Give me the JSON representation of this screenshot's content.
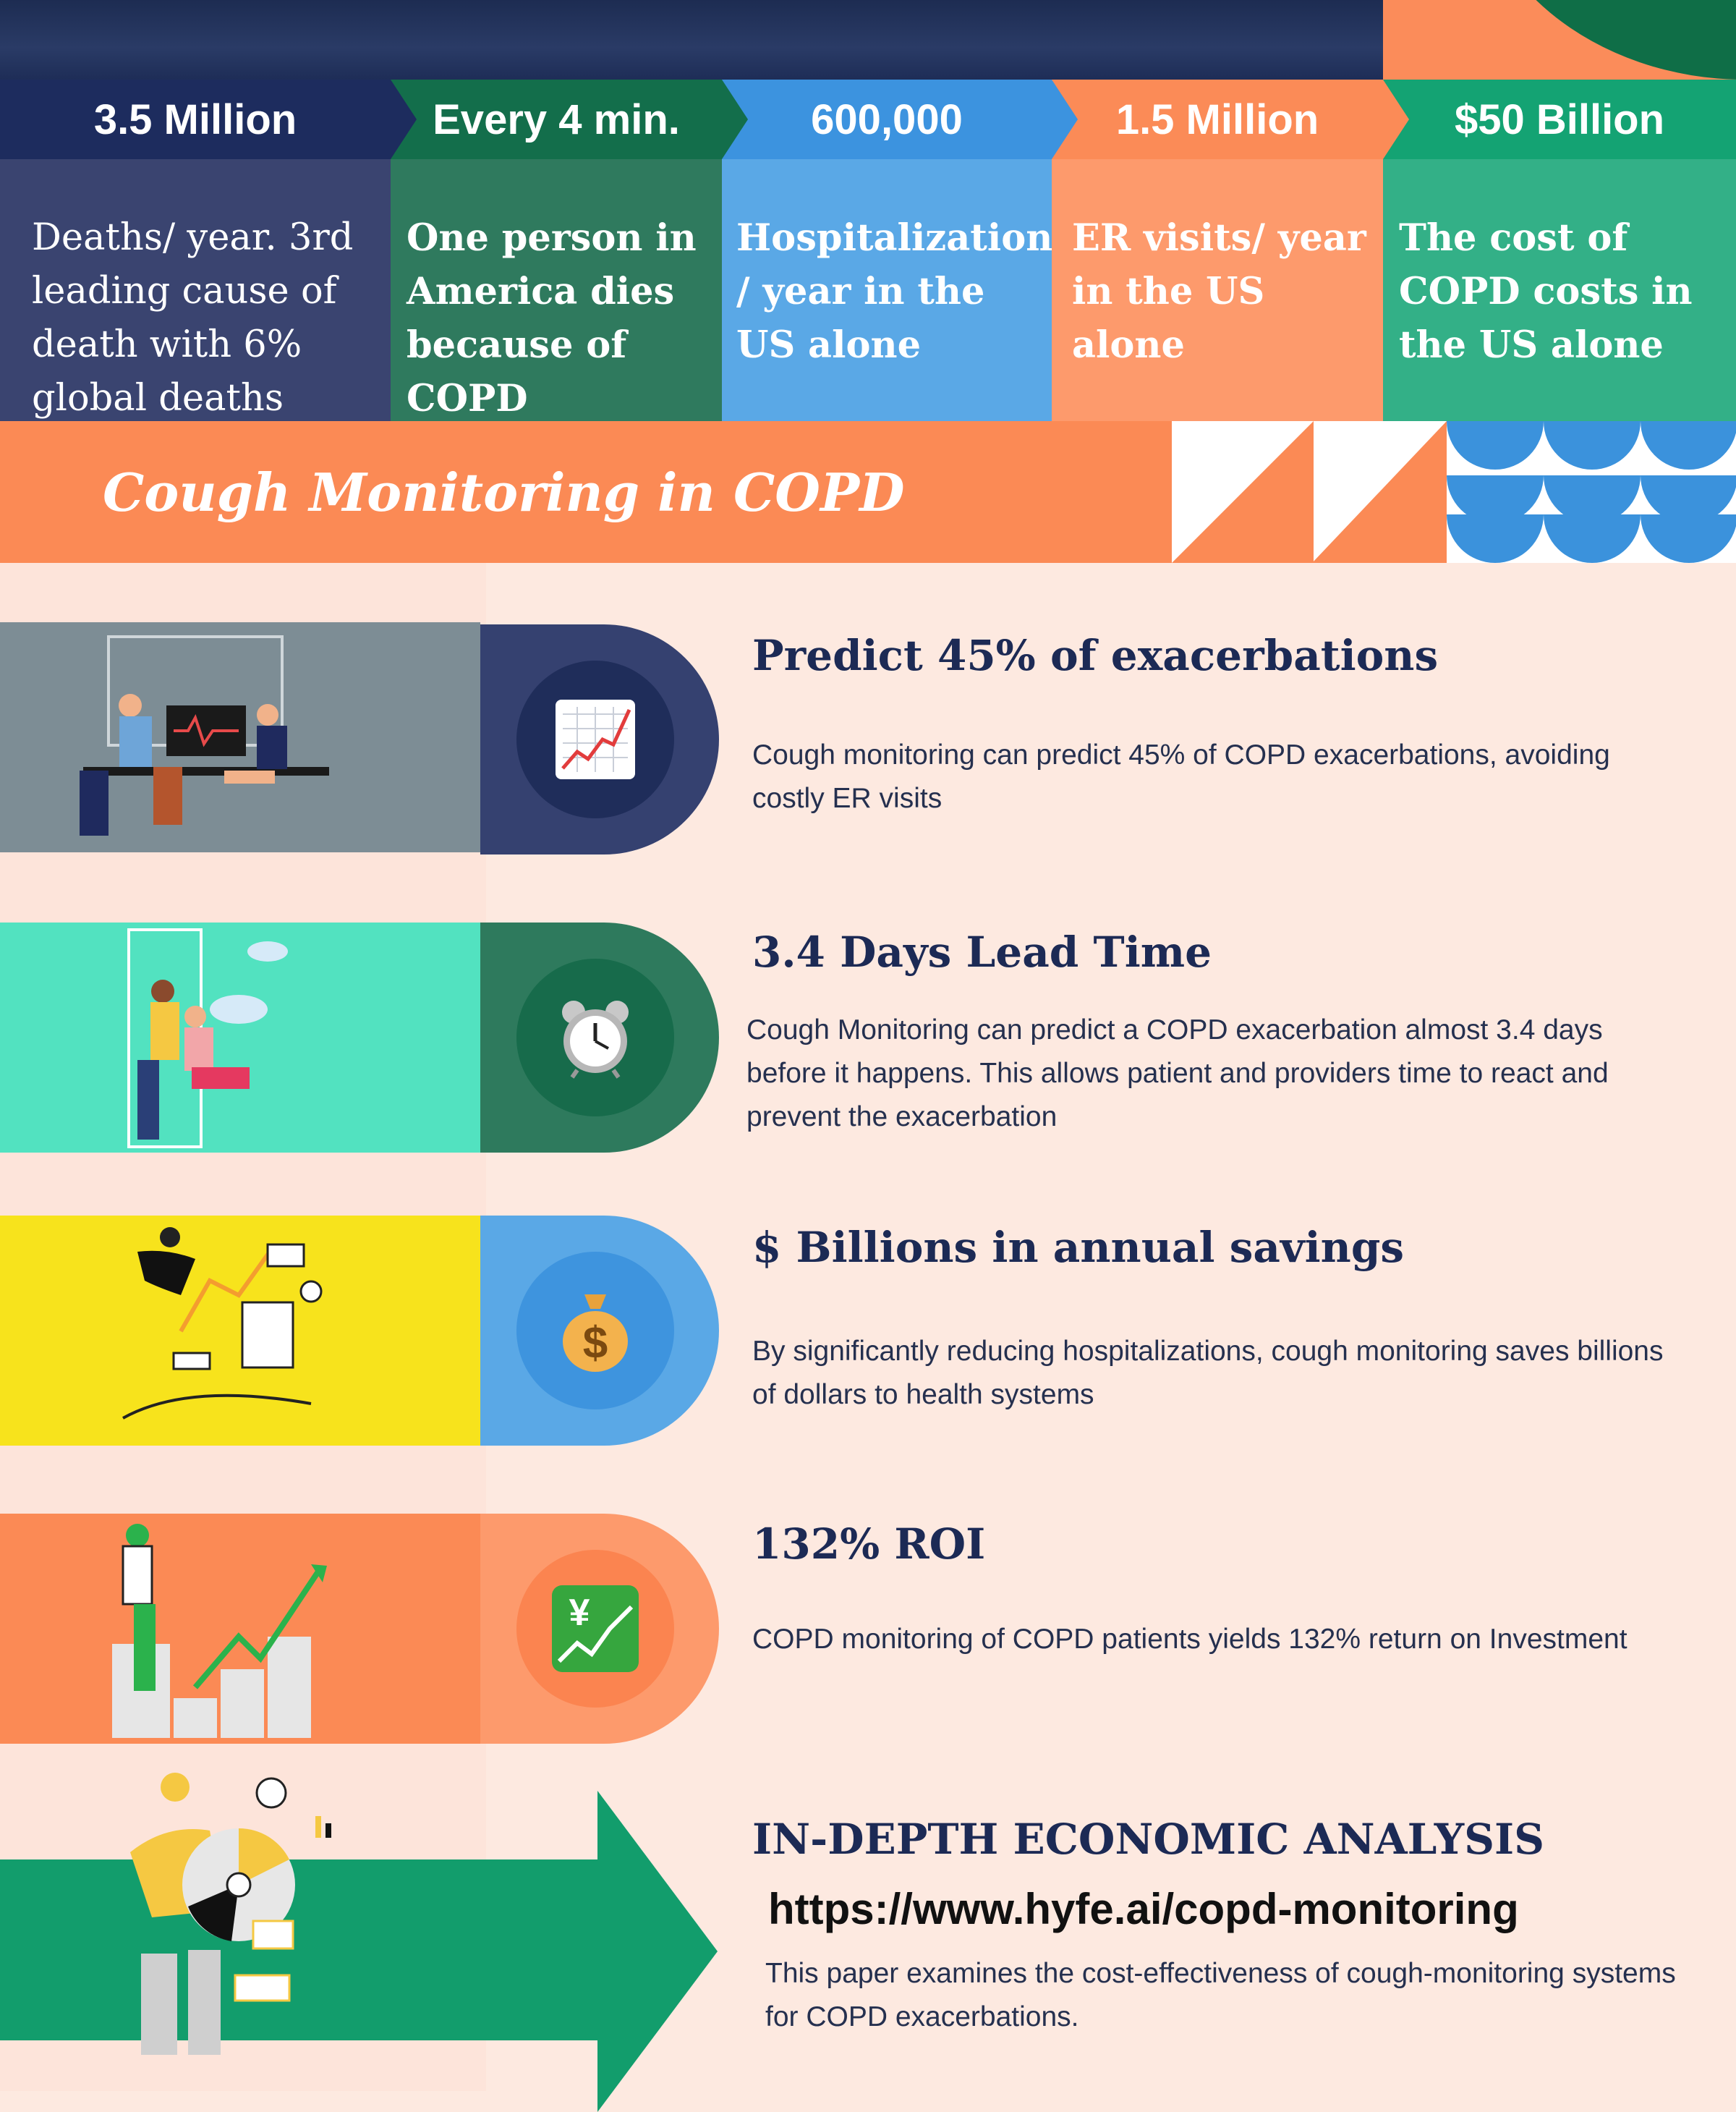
{
  "stats": [
    {
      "value": "3.5 Million",
      "text": "Deaths/ year. 3rd leading cause of death with 6% global deaths",
      "head_color": "#1d2c5e",
      "body_color": "#3a4470"
    },
    {
      "value": "Every 4 min.",
      "text": "One person in America dies because of COPD",
      "head_color": "#136e4b",
      "body_color": "#2f7a5e"
    },
    {
      "value": "600,000",
      "text": "Hospitalizations / year  in the US alone",
      "head_color": "#3c93df",
      "body_color": "#5aa8e6"
    },
    {
      "value": "1.5 Million",
      "text": "ER visits/ year in the US alone",
      "head_color": "#fb8b57",
      "body_color": "#fd9a6c"
    },
    {
      "value": "$50 Billion",
      "text": "The cost of COPD costs in the US alone",
      "head_color": "#14a373",
      "body_color": "#33b087"
    }
  ],
  "section_title": "Cough Monitoring in COPD",
  "features": [
    {
      "title": "Predict 45% of exacerbations",
      "body": "Cough monitoring can predict 45% of COPD exacerbations, avoiding costly ER visits",
      "icon": "chart-increasing-icon",
      "illus_color": "#7d8d95",
      "pill_color": "#354170",
      "circle_color": "#1f2d5a"
    },
    {
      "title": "3.4 Days Lead Time",
      "body": "Cough Monitoring can predict a COPD exacerbation almost 3.4 days before it happens. This allows patient and providers time to react and prevent the exacerbation",
      "icon": "alarm-clock-icon",
      "illus_color": "#52e2c0",
      "pill_color": "#2e7a5d",
      "circle_color": "#176b4b"
    },
    {
      "title": "$ Billions in annual savings",
      "body": "By significantly reducing hospitalizations, cough monitoring saves billions of dollars to  health systems",
      "icon": "money-bag-icon",
      "illus_color": "#f7e31c",
      "pill_color": "#5aa8e6",
      "circle_color": "#3e94de"
    },
    {
      "title": "132% ROI",
      "body": "COPD monitoring of COPD patients yields 132% return on Investment",
      "icon": "yen-chart-icon",
      "illus_color": "#fb8a55",
      "pill_color": "#fd9a6c",
      "circle_color": "#fb8450"
    }
  ],
  "analysis": {
    "title": "IN-DEPTH ECONOMIC ANALYSIS",
    "url": "https://www.hyfe.ai/copd-monitoring",
    "body": "This paper examines the cost-effectiveness of cough-monitoring systems for COPD exacerbations."
  }
}
